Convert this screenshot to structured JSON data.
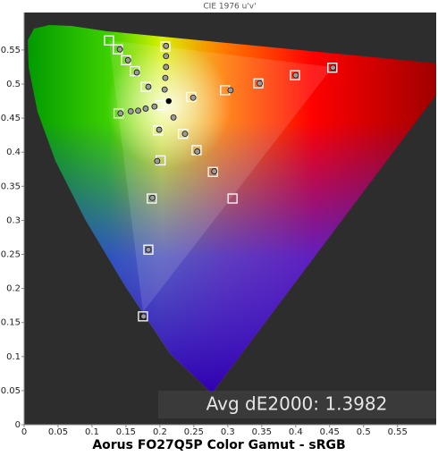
{
  "chart_data": {
    "type": "scatter",
    "title": "CIE 1976 u'v'",
    "caption": "Aorus FO27Q5P Color Gamut - sRGB",
    "annotation": "Avg dE2000: 1.3982",
    "xlim": [
      0,
      0.607
    ],
    "ylim": [
      0,
      0.605
    ],
    "xticks": [
      0,
      0.05,
      0.1,
      0.15,
      0.2,
      0.25,
      0.3,
      0.35,
      0.4,
      0.45,
      0.5,
      0.55
    ],
    "yticks": [
      0,
      0.05,
      0.1,
      0.15,
      0.2,
      0.25,
      0.3,
      0.35,
      0.4,
      0.45,
      0.5,
      0.55
    ],
    "grid": false,
    "series": [
      {
        "marker": "square",
        "color": "#ffffff",
        "x": [
          0.125,
          0.138,
          0.15,
          0.163,
          0.179,
          0.2,
          0.246,
          0.296,
          0.345,
          0.399,
          0.454,
          0.208,
          0.139,
          0.307,
          0.278,
          0.254,
          0.234,
          0.197,
          0.201,
          0.188,
          0.183,
          0.175
        ],
        "values": [
          0.564,
          0.551,
          0.535,
          0.519,
          0.496,
          0.469,
          0.481,
          0.491,
          0.501,
          0.513,
          0.524,
          0.555,
          0.457,
          0.332,
          0.371,
          0.403,
          0.427,
          0.432,
          0.388,
          0.332,
          0.257,
          0.159
        ]
      },
      {
        "marker": "circle",
        "color": "#9a9a9a",
        "x": [
          0.141,
          0.153,
          0.166,
          0.183,
          0.249,
          0.304,
          0.347,
          0.4,
          0.455,
          0.209,
          0.209,
          0.209,
          0.208,
          0.207,
          0.142,
          0.157,
          0.168,
          0.179,
          0.192,
          0.22,
          0.237,
          0.255,
          0.28,
          0.199,
          0.196,
          0.189,
          0.183,
          0.176
        ],
        "values": [
          0.551,
          0.535,
          0.517,
          0.496,
          0.48,
          0.491,
          0.501,
          0.513,
          0.524,
          0.556,
          0.541,
          0.525,
          0.509,
          0.492,
          0.457,
          0.46,
          0.461,
          0.464,
          0.467,
          0.451,
          0.427,
          0.401,
          0.372,
          0.433,
          0.387,
          0.333,
          0.257,
          0.159
        ]
      },
      {
        "marker": "dot",
        "color": "#000000",
        "x": [
          0.213
        ],
        "values": [
          0.475
        ]
      }
    ]
  }
}
